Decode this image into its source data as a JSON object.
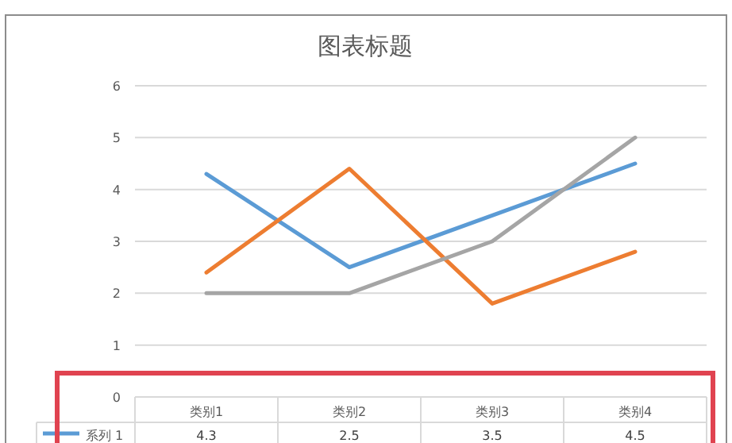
{
  "chart_data": {
    "type": "line",
    "title": "图表标题",
    "categories": [
      "类别1",
      "类别2",
      "类别3",
      "类别4"
    ],
    "series": [
      {
        "name": "系列 1",
        "color": "#5b9bd5",
        "values": [
          4.3,
          2.5,
          3.5,
          4.5
        ],
        "value_labels": [
          "4.3",
          "2.5",
          "3.5",
          "4.5"
        ]
      },
      {
        "color": "#ed7d31",
        "values": [
          2.4,
          4.4,
          1.8,
          2.8
        ]
      },
      {
        "color": "#a5a5a5",
        "values": [
          2,
          2,
          3,
          5
        ]
      }
    ],
    "ylim": [
      0,
      6
    ],
    "yticks": [
      0,
      1,
      2,
      3,
      4,
      5,
      6
    ],
    "grid": "y",
    "legend": "bottom"
  }
}
